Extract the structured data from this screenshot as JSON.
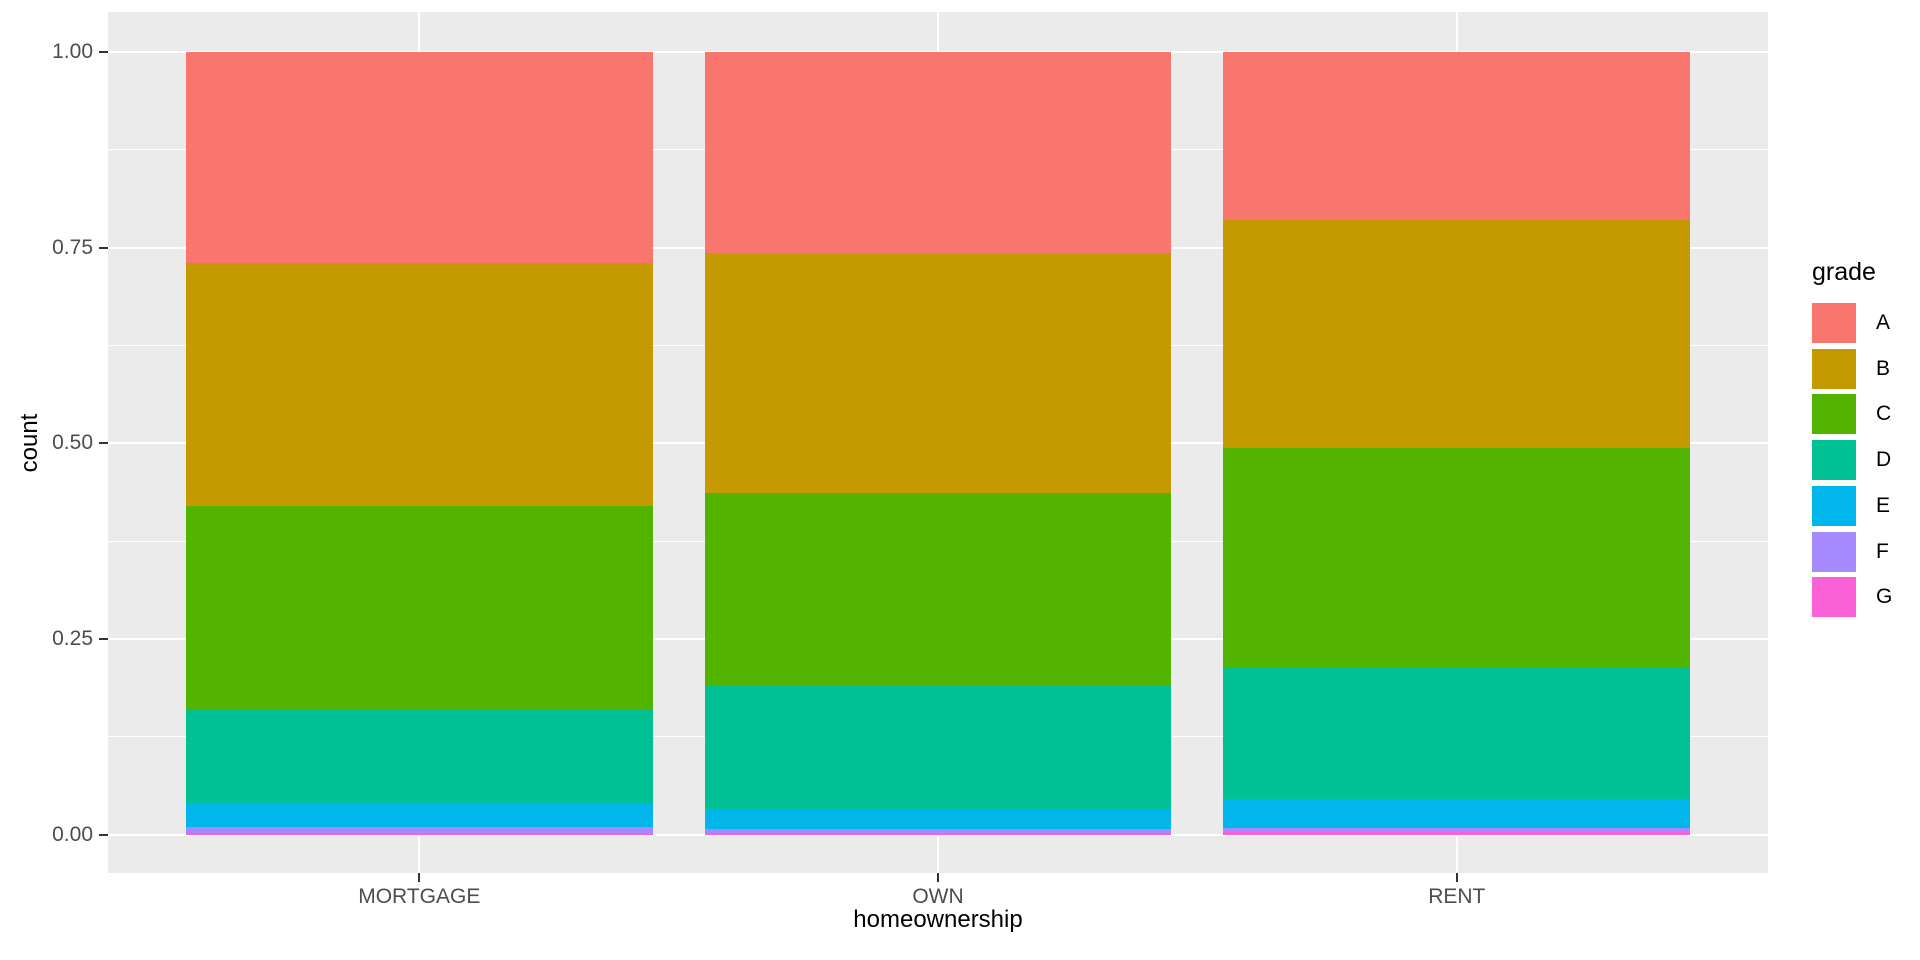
{
  "chart_data": {
    "type": "bar",
    "variant": "stacked-filled-proportions",
    "title": "",
    "xlabel": "homeownership",
    "ylabel": "count",
    "categories": [
      "MORTGAGE",
      "OWN",
      "RENT"
    ],
    "series": [
      {
        "name": "A",
        "color": "#F8766D",
        "values": [
          0.269,
          0.257,
          0.215
        ]
      },
      {
        "name": "B",
        "color": "#C49A00",
        "values": [
          0.311,
          0.306,
          0.291
        ]
      },
      {
        "name": "C",
        "color": "#53B400",
        "values": [
          0.259,
          0.246,
          0.28
        ]
      },
      {
        "name": "D",
        "color": "#00C094",
        "values": [
          0.121,
          0.158,
          0.169
        ]
      },
      {
        "name": "E",
        "color": "#00B6EB",
        "values": [
          0.031,
          0.026,
          0.037
        ]
      },
      {
        "name": "F",
        "color": "#A58AFF",
        "values": [
          0.007,
          0.005,
          0.005
        ]
      },
      {
        "name": "G",
        "color": "#FB61D7",
        "values": [
          0.002,
          0.002,
          0.003
        ]
      }
    ],
    "stack_order_top_to_bottom": [
      "A",
      "B",
      "C",
      "D",
      "E",
      "F",
      "G"
    ],
    "ylim": [
      0,
      1
    ],
    "y_ticks": [
      {
        "label": "1.00",
        "value": 1.0
      },
      {
        "label": "0.75",
        "value": 0.75
      },
      {
        "label": "0.50",
        "value": 0.5
      },
      {
        "label": "0.25",
        "value": 0.25
      },
      {
        "label": "0.00",
        "value": 0.0
      }
    ],
    "y_minor_gridlines": [
      0.125,
      0.375,
      0.625,
      0.875
    ],
    "grid": "on",
    "legend": {
      "title": "grade",
      "position": "right"
    },
    "colors": {
      "figure_background": "#FFFFFF",
      "panel_background": "#EBEBEB",
      "gridline": "#FFFFFF",
      "tick_mark": "#333333",
      "tick_label": "#4D4D4D",
      "axis_title": "#000000"
    }
  }
}
